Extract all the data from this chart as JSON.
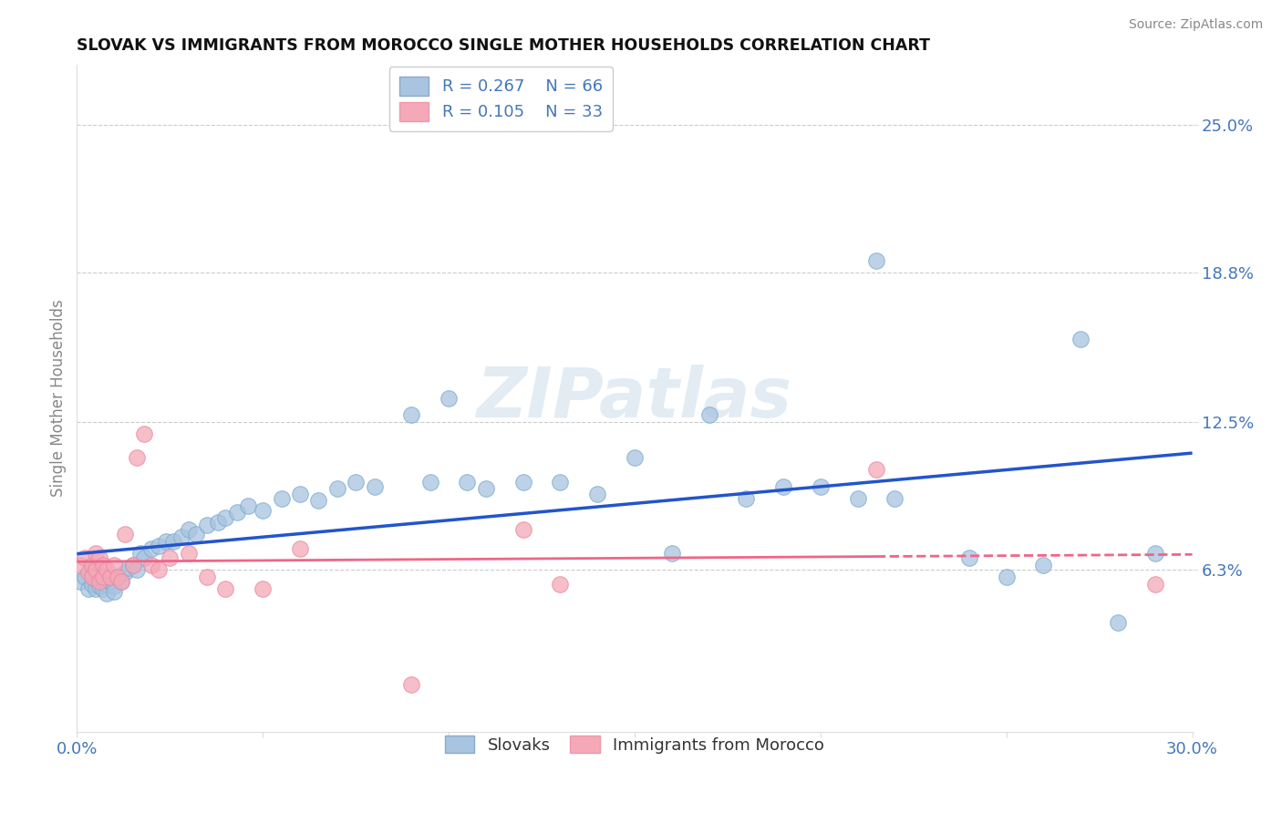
{
  "title": "SLOVAK VS IMMIGRANTS FROM MOROCCO SINGLE MOTHER HOUSEHOLDS CORRELATION CHART",
  "source": "Source: ZipAtlas.com",
  "ylabel": "Single Mother Households",
  "xlim": [
    0.0,
    0.3
  ],
  "ylim": [
    -0.005,
    0.275
  ],
  "xticks": [
    0.0,
    0.05,
    0.1,
    0.15,
    0.2,
    0.25,
    0.3
  ],
  "xticklabels": [
    "0.0%",
    "",
    "",
    "",
    "",
    "",
    "30.0%"
  ],
  "ytick_positions": [
    0.063,
    0.125,
    0.188,
    0.25
  ],
  "ytick_labels": [
    "6.3%",
    "12.5%",
    "18.8%",
    "25.0%"
  ],
  "blue_R": 0.267,
  "blue_N": 66,
  "pink_R": 0.105,
  "pink_N": 33,
  "blue_color": "#A8C4E0",
  "pink_color": "#F4A8B8",
  "blue_line_color": "#2255CC",
  "pink_line_color": "#EE6688",
  "background_color": "#FFFFFF",
  "grid_color": "#CCCCCC",
  "title_color": "#111111",
  "axis_color": "#4477BB",
  "watermark": "ZIPatlas",
  "blue_x": [
    0.001,
    0.002,
    0.003,
    0.004,
    0.004,
    0.005,
    0.005,
    0.006,
    0.006,
    0.007,
    0.007,
    0.008,
    0.008,
    0.009,
    0.01,
    0.01,
    0.011,
    0.012,
    0.013,
    0.014,
    0.015,
    0.016,
    0.017,
    0.018,
    0.02,
    0.022,
    0.024,
    0.026,
    0.028,
    0.03,
    0.032,
    0.035,
    0.038,
    0.04,
    0.043,
    0.046,
    0.05,
    0.055,
    0.06,
    0.065,
    0.07,
    0.075,
    0.08,
    0.09,
    0.095,
    0.1,
    0.105,
    0.11,
    0.12,
    0.13,
    0.14,
    0.15,
    0.16,
    0.17,
    0.18,
    0.19,
    0.2,
    0.21,
    0.215,
    0.22,
    0.24,
    0.25,
    0.26,
    0.27,
    0.28,
    0.29
  ],
  "blue_y": [
    0.058,
    0.06,
    0.055,
    0.062,
    0.057,
    0.059,
    0.055,
    0.06,
    0.056,
    0.058,
    0.055,
    0.057,
    0.053,
    0.058,
    0.056,
    0.054,
    0.06,
    0.058,
    0.062,
    0.064,
    0.065,
    0.063,
    0.07,
    0.068,
    0.072,
    0.073,
    0.075,
    0.075,
    0.077,
    0.08,
    0.078,
    0.082,
    0.083,
    0.085,
    0.087,
    0.09,
    0.088,
    0.093,
    0.095,
    0.092,
    0.097,
    0.1,
    0.098,
    0.128,
    0.1,
    0.135,
    0.1,
    0.097,
    0.1,
    0.1,
    0.095,
    0.11,
    0.07,
    0.128,
    0.093,
    0.098,
    0.098,
    0.093,
    0.193,
    0.093,
    0.068,
    0.06,
    0.065,
    0.16,
    0.041,
    0.07
  ],
  "pink_x": [
    0.001,
    0.002,
    0.003,
    0.004,
    0.004,
    0.005,
    0.005,
    0.006,
    0.006,
    0.007,
    0.007,
    0.008,
    0.009,
    0.01,
    0.011,
    0.012,
    0.013,
    0.015,
    0.016,
    0.018,
    0.02,
    0.022,
    0.025,
    0.03,
    0.035,
    0.04,
    0.05,
    0.06,
    0.09,
    0.12,
    0.13,
    0.215,
    0.29
  ],
  "pink_y": [
    0.065,
    0.068,
    0.062,
    0.065,
    0.06,
    0.07,
    0.063,
    0.068,
    0.058,
    0.065,
    0.06,
    0.063,
    0.06,
    0.065,
    0.06,
    0.058,
    0.078,
    0.065,
    0.11,
    0.12,
    0.065,
    0.063,
    0.068,
    0.07,
    0.06,
    0.055,
    0.055,
    0.072,
    0.015,
    0.08,
    0.057,
    0.105,
    0.057
  ]
}
